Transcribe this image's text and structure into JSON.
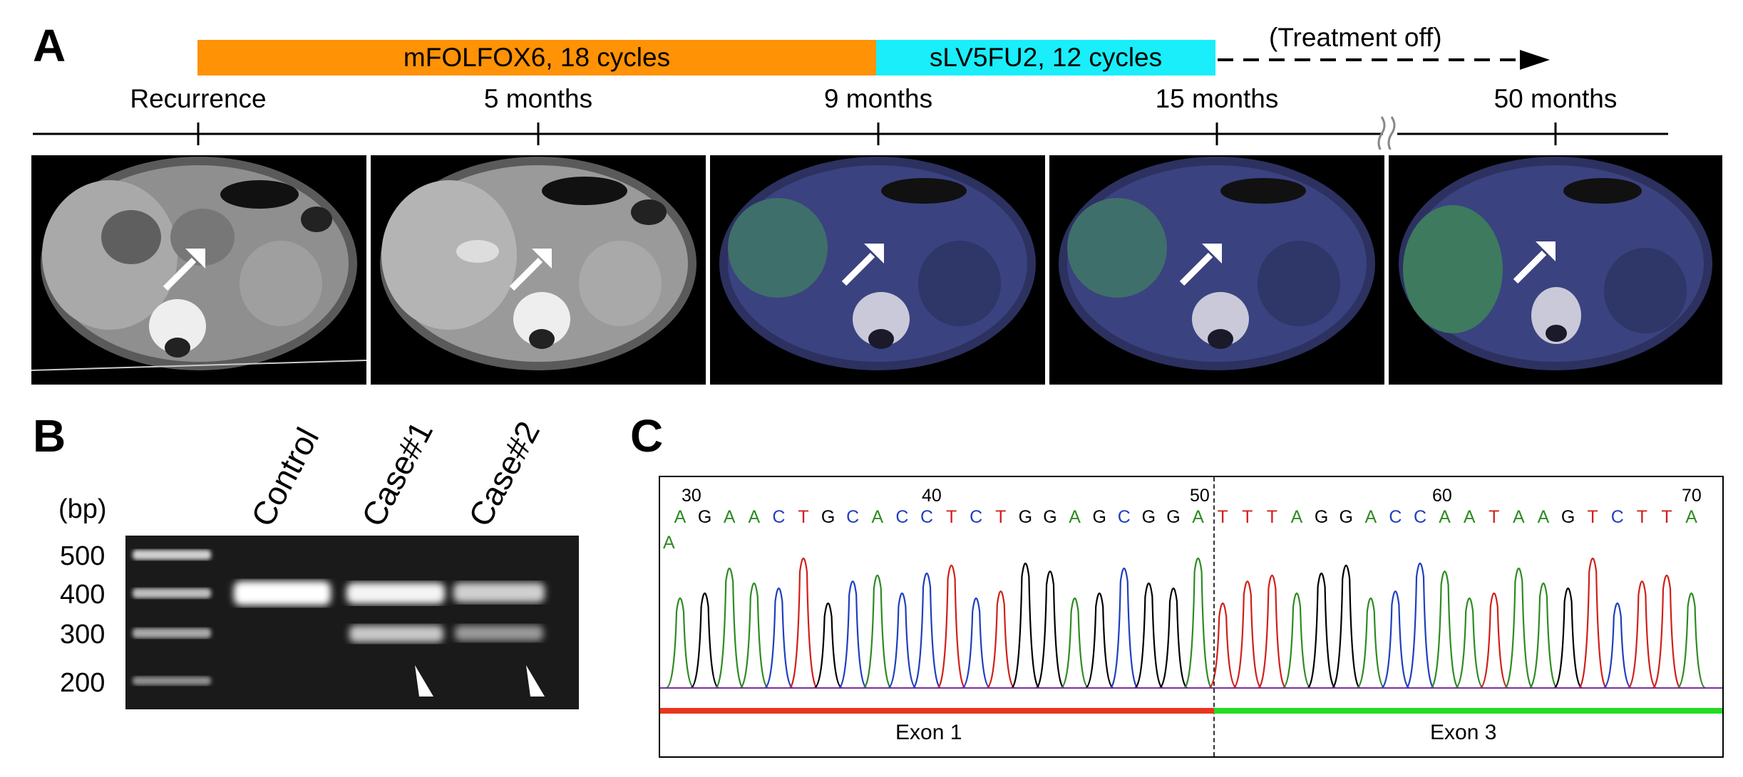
{
  "panels": {
    "a": "A",
    "b": "B",
    "c": "C"
  },
  "timeline": {
    "bar1_label": "mFOLFOX6, 18 cycles",
    "bar2_label": "sLV5FU2, 12 cycles",
    "treatment_off": "(Treatment off)",
    "points": [
      "Recurrence",
      "5 months",
      "9 months",
      "15 months",
      "50 months"
    ],
    "colors": {
      "bar1": "#FF9205",
      "bar2": "#19EEFA"
    }
  },
  "scans": [
    {
      "time": "Recurrence",
      "type": "CT"
    },
    {
      "time": "5 months",
      "type": "CT"
    },
    {
      "time": "9 months",
      "type": "PET/CT"
    },
    {
      "time": "15 months",
      "type": "PET/CT"
    },
    {
      "time": "50 months",
      "type": "PET/CT"
    }
  ],
  "gel": {
    "unit": "(bp)",
    "markers": [
      "500",
      "400",
      "300",
      "200"
    ],
    "lanes": [
      "Control",
      "Case#1",
      "Case#2"
    ]
  },
  "chromatogram": {
    "positions": [
      "30",
      "40",
      "50",
      "60",
      "70"
    ],
    "sequence": [
      "A",
      "G",
      "A",
      "A",
      "C",
      "T",
      "G",
      "C",
      "A",
      "C",
      "C",
      "T",
      "C",
      "T",
      "G",
      "G",
      "A",
      "G",
      "C",
      "G",
      "G",
      "A",
      "T",
      "T",
      "T",
      "A",
      "G",
      "G",
      "A",
      "C",
      "C",
      "A",
      "A",
      "T",
      "A",
      "A",
      "G",
      "T",
      "C",
      "T",
      "T",
      "A"
    ],
    "extra_base": "A",
    "exon_left": "Exon 1",
    "exon_right": "Exon 3",
    "base_colors": {
      "A": "#2E8B22",
      "G": "#000000",
      "C": "#1F3FBF",
      "T": "#D0201A"
    },
    "exon_colors": {
      "left": "#E8361C",
      "right": "#22DD22"
    }
  }
}
